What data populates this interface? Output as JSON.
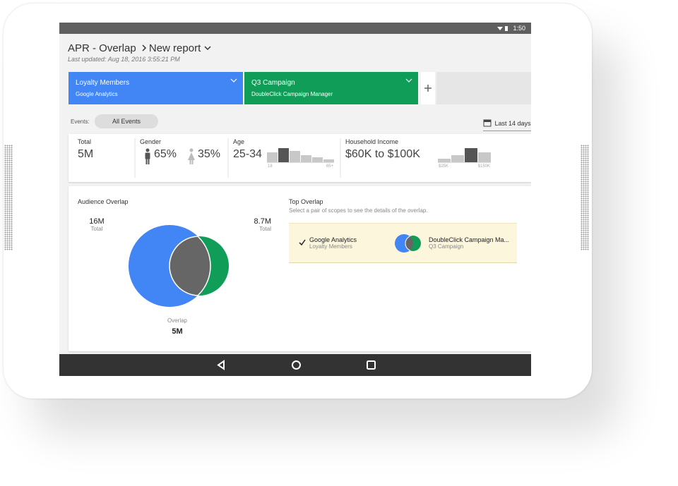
{
  "status_bar": {
    "time": "1:50"
  },
  "header": {
    "title": "APR - Overlap",
    "breadcrumb": "New report",
    "last_updated": "Last updated: Aug 18, 2016 3:55:21 PM"
  },
  "segments": [
    {
      "name": "Loyalty Members",
      "source": "Google Analytics",
      "color": "#4285f4"
    },
    {
      "name": "Q3 Campaign",
      "source": "DoubleClick Campaign Manager",
      "color": "#0f9d58"
    }
  ],
  "events": {
    "label": "Events:",
    "chip": "All Events",
    "date_range": "Last 14 days:"
  },
  "summary": {
    "total": {
      "label": "Total",
      "value": "5M"
    },
    "gender": {
      "label": "Gender",
      "male": "65%",
      "female": "35%"
    },
    "age": {
      "label": "Age",
      "value": "25-34",
      "axis_start": "18",
      "axis_end": "65+",
      "bars": [
        14,
        20,
        16,
        10,
        7,
        4
      ],
      "highlight": 1
    },
    "income": {
      "label": "Household Income",
      "value": "$60K to $100K",
      "axis_start": "$25K",
      "axis_end": "$150K",
      "bars": [
        5,
        10,
        20,
        14
      ],
      "highlight": 2
    }
  },
  "overlap": {
    "title": "Audience Overlap",
    "left": {
      "value": "16M",
      "label": "Total"
    },
    "right": {
      "value": "8.7M",
      "label": "Total"
    },
    "center": {
      "label": "Overlap",
      "value": "5M"
    }
  },
  "top_overlap": {
    "title": "Top Overlap",
    "hint": "Select a pair of scopes to see the details of the overlap.",
    "row": {
      "left_name": "Google Analytics",
      "left_sub": "Loyalty Members",
      "right_name": "DoubleClick Campaign Ma...",
      "right_sub": "Q3 Campaign"
    }
  }
}
